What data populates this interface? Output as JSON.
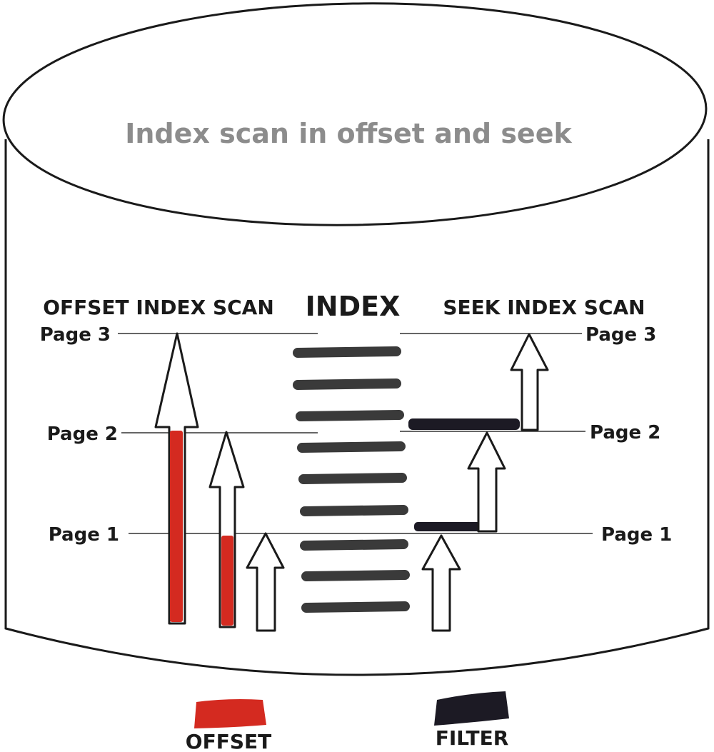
{
  "title": "Index scan in offset and seek",
  "headings": {
    "offset": "OFFSET INDEX SCAN",
    "index": "INDEX",
    "seek": "SEEK INDEX SCAN"
  },
  "pages_left": [
    "Page 3",
    "Page 2",
    "Page 1"
  ],
  "pages_right": [
    "Page 3",
    "Page 2",
    "Page 1"
  ],
  "legend": {
    "offset": "OFFSET",
    "filter": "FILTER"
  },
  "colors": {
    "offset": "#d42a20",
    "filter": "#1c1a24",
    "index_bar": "#3a3a3a",
    "title": "#8c8c8c",
    "text": "#1a1a1a",
    "outline": "#1a1a1a"
  }
}
